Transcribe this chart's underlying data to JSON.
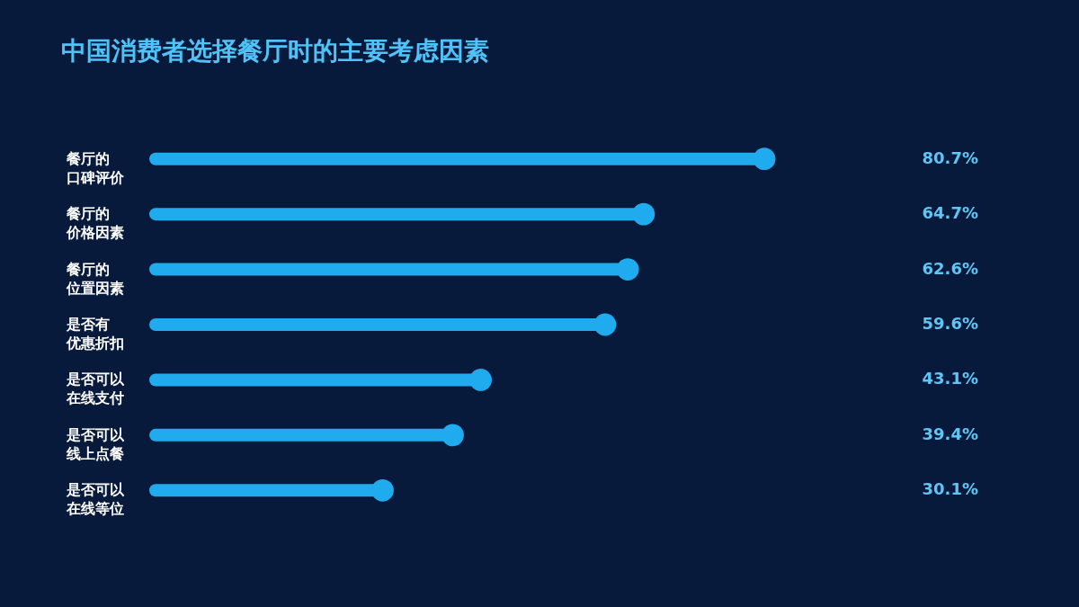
{
  "chart_data": {
    "type": "lollipop",
    "orientation": "horizontal",
    "title": "中国消费者选择餐厅时的主要考虑因素",
    "categories": [
      "餐厅的口碑评价",
      "餐厅的价格因素",
      "餐厅的位置因素",
      "是否有优惠折扣",
      "是否可以在线支付",
      "是否可以线上点餐",
      "是否可以在线等位"
    ],
    "values": [
      80.7,
      64.7,
      62.6,
      59.6,
      43.1,
      39.4,
      30.1
    ],
    "value_labels": [
      "80.7%",
      "64.7%",
      "62.6%",
      "59.6%",
      "43.1%",
      "39.4%",
      "30.1%"
    ],
    "color": "#1fabee",
    "marker": "circle"
  }
}
